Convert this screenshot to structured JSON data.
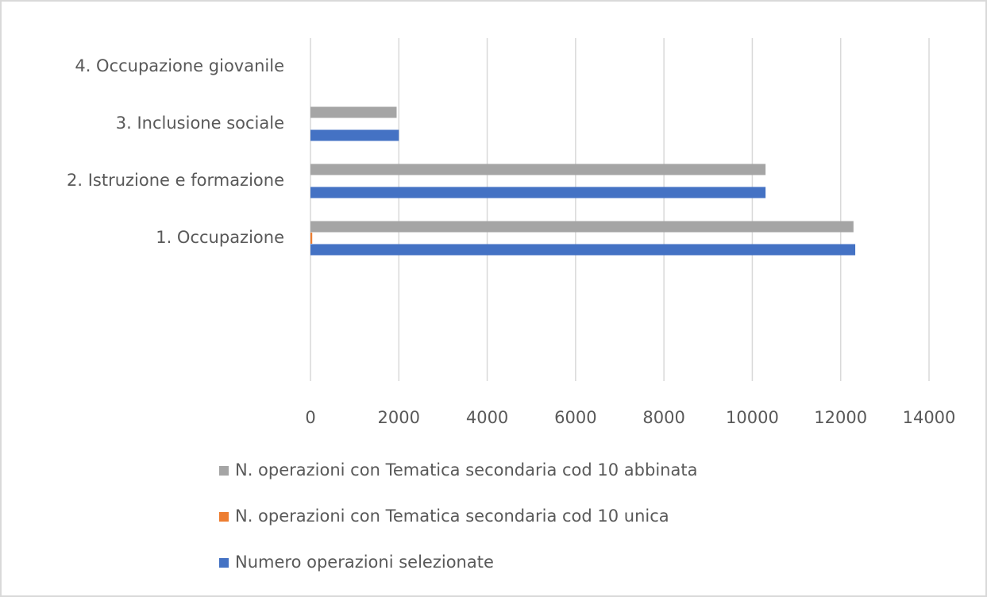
{
  "chart_data": {
    "type": "hbar",
    "categories": [
      null,
      null,
      "1. Occupazione",
      "2. Istruzione e formazione",
      "3. Inclusione sociale",
      "4. Occupazione giovanile"
    ],
    "series": [
      {
        "name": "Numero operazioni selezionate",
        "color": "#4472c4",
        "values": [
          null,
          null,
          12330,
          10300,
          2000,
          0
        ]
      },
      {
        "name": "N. operazioni con Tematica secondaria cod 10 unica",
        "color": "#ed7d31",
        "values": [
          null,
          null,
          40,
          0,
          0,
          0
        ]
      },
      {
        "name": "N. operazioni con Tematica secondaria cod 10 abbinata",
        "color": "#a5a5a5",
        "values": [
          null,
          null,
          12290,
          10300,
          1950,
          0
        ]
      }
    ],
    "xlim": [
      0,
      14000
    ],
    "xticks": [
      0,
      2000,
      4000,
      6000,
      8000,
      10000,
      12000,
      14000
    ],
    "grid": true
  }
}
